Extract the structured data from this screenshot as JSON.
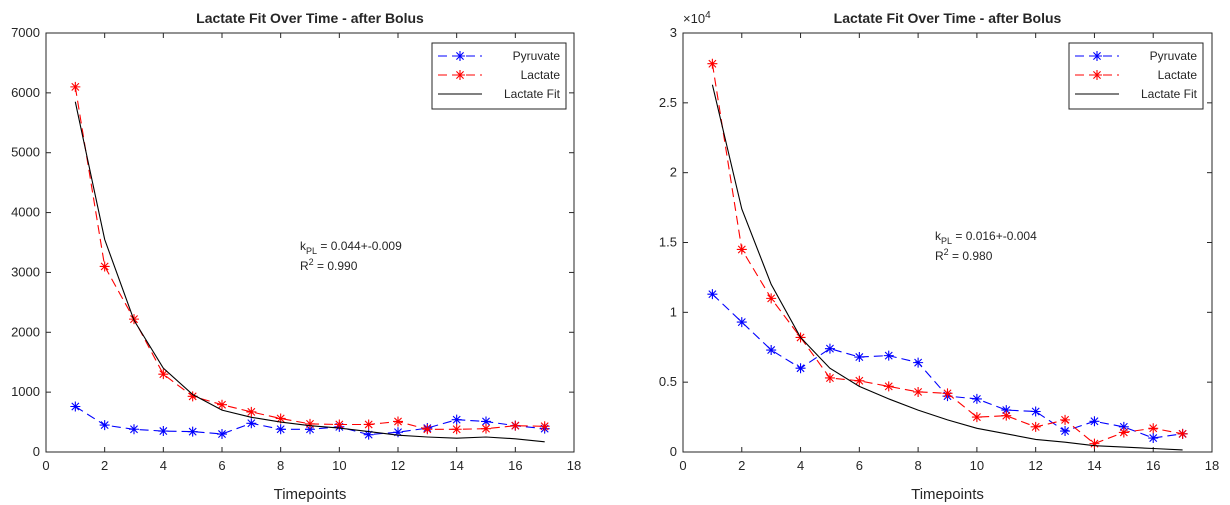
{
  "colors": {
    "pyruvate": "#0000ff",
    "lactate": "#ff0000",
    "fit": "#000000",
    "axis": "#262626"
  },
  "chart_data": [
    {
      "type": "line",
      "title": "Lactate Fit Over Time - after Bolus",
      "xlabel": "Timepoints",
      "ylabel": "",
      "xlim": [
        0,
        18
      ],
      "ylim": [
        0,
        7000
      ],
      "xticks": [
        0,
        2,
        4,
        6,
        8,
        10,
        12,
        14,
        16,
        18
      ],
      "yticks": [
        0,
        1000,
        2000,
        3000,
        4000,
        5000,
        6000,
        7000
      ],
      "ytick_labels": [
        "0",
        "1000",
        "2000",
        "3000",
        "4000",
        "5000",
        "6000",
        "7000"
      ],
      "y_exponent_label": "",
      "legend_position": "top-right",
      "annotation": {
        "k_label": "k",
        "k_sub": "PL",
        "k_value": " = 0.044+-0.009",
        "r_label": "R",
        "r_sup": "2",
        "r_value": " = 0.990"
      },
      "x": [
        1,
        2,
        3,
        4,
        5,
        6,
        7,
        8,
        9,
        10,
        11,
        12,
        13,
        14,
        15,
        16,
        17
      ],
      "series": [
        {
          "name": "Pyruvate",
          "style": "dashed-star",
          "color": "#0000ff",
          "values": [
            760,
            450,
            380,
            350,
            340,
            300,
            480,
            380,
            380,
            420,
            290,
            330,
            400,
            540,
            510,
            440,
            390
          ]
        },
        {
          "name": "Lactate",
          "style": "dashed-star",
          "color": "#ff0000",
          "values": [
            6100,
            3100,
            2220,
            1300,
            930,
            790,
            670,
            560,
            470,
            460,
            460,
            510,
            380,
            380,
            390,
            440,
            430
          ]
        },
        {
          "name": "Lactate Fit",
          "style": "solid",
          "color": "#000000",
          "values": [
            5850,
            3550,
            2200,
            1400,
            960,
            700,
            580,
            500,
            440,
            400,
            340,
            280,
            250,
            230,
            250,
            220,
            170
          ]
        }
      ]
    },
    {
      "type": "line",
      "title": "Lactate Fit Over Time - after Bolus",
      "xlabel": "Timepoints",
      "ylabel": "",
      "xlim": [
        0,
        18
      ],
      "ylim": [
        0,
        30000
      ],
      "xticks": [
        0,
        2,
        4,
        6,
        8,
        10,
        12,
        14,
        16,
        18
      ],
      "yticks": [
        0,
        5000,
        10000,
        15000,
        20000,
        25000,
        30000
      ],
      "ytick_labels": [
        "0",
        "0.5",
        "1",
        "1.5",
        "2",
        "2.5",
        "3"
      ],
      "y_exponent_label": "×10",
      "y_exponent_power": "4",
      "legend_position": "top-right",
      "annotation": {
        "k_label": "k",
        "k_sub": "PL",
        "k_value": " = 0.016+-0.004",
        "r_label": "R",
        "r_sup": "2",
        "r_value": " = 0.980"
      },
      "x": [
        1,
        2,
        3,
        4,
        5,
        6,
        7,
        8,
        9,
        10,
        11,
        12,
        13,
        14,
        15,
        16,
        17
      ],
      "series": [
        {
          "name": "Pyruvate",
          "style": "dashed-star",
          "color": "#0000ff",
          "values": [
            11300,
            9300,
            7300,
            6000,
            7400,
            6800,
            6900,
            6400,
            4000,
            3800,
            3000,
            2900,
            1500,
            2200,
            1800,
            1000,
            1300
          ]
        },
        {
          "name": "Lactate",
          "style": "dashed-star",
          "color": "#ff0000",
          "values": [
            27800,
            14500,
            11000,
            8200,
            5300,
            5100,
            4700,
            4300,
            4200,
            2500,
            2600,
            1800,
            2300,
            600,
            1400,
            1700,
            1300
          ]
        },
        {
          "name": "Lactate Fit",
          "style": "solid",
          "color": "#000000",
          "values": [
            26300,
            17400,
            12000,
            8200,
            6000,
            4700,
            3800,
            3000,
            2300,
            1700,
            1300,
            900,
            700,
            450,
            350,
            250,
            150
          ]
        }
      ]
    }
  ]
}
